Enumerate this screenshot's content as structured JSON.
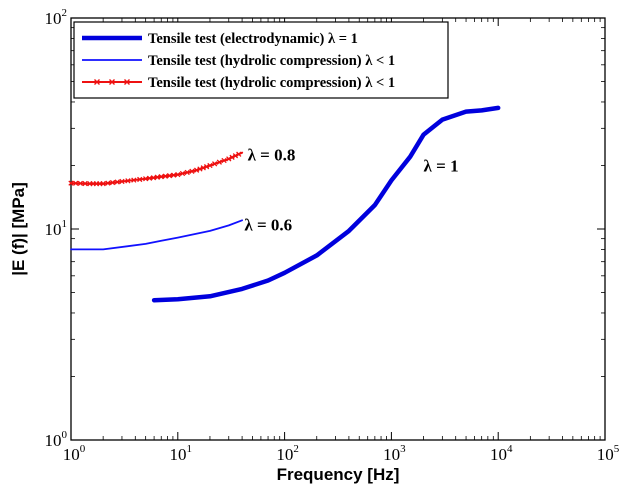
{
  "chart_data": {
    "type": "line",
    "xscale": "log",
    "yscale": "log",
    "xlim": [
      1,
      100000
    ],
    "ylim": [
      1,
      100
    ],
    "xlabel": "Frequency [Hz]",
    "ylabel": "|E (f)| [MPa]",
    "grid": false,
    "legend_position": "top-left",
    "x_ticks": [
      {
        "base": "10",
        "exp": "0",
        "value": 1
      },
      {
        "base": "10",
        "exp": "1",
        "value": 10
      },
      {
        "base": "10",
        "exp": "2",
        "value": 100
      },
      {
        "base": "10",
        "exp": "3",
        "value": 1000
      },
      {
        "base": "10",
        "exp": "4",
        "value": 10000
      },
      {
        "base": "10",
        "exp": "5",
        "value": 100000
      }
    ],
    "y_ticks": [
      {
        "base": "10",
        "exp": "0",
        "value": 1
      },
      {
        "base": "10",
        "exp": "1",
        "value": 10
      },
      {
        "base": "10",
        "exp": "2",
        "value": 100
      }
    ],
    "series": [
      {
        "name": "Tensile test (electrodynamic) λ = 1",
        "color": "#0000dd",
        "style": "thick",
        "x": [
          6,
          10,
          20,
          40,
          70,
          100,
          200,
          400,
          700,
          1000,
          1500,
          2000,
          3000,
          5000,
          7000,
          10000
        ],
        "y": [
          4.6,
          4.65,
          4.8,
          5.2,
          5.7,
          6.2,
          7.5,
          9.8,
          13,
          17,
          22,
          28,
          33,
          36,
          36.5,
          37.5
        ]
      },
      {
        "name": "Tensile test (hydrolic compression) λ < 1",
        "color": "#1111ff",
        "style": "thin",
        "x": [
          1,
          2,
          5,
          7,
          10,
          20,
          30,
          40
        ],
        "y": [
          8.0,
          8.0,
          8.5,
          8.8,
          9.1,
          9.8,
          10.4,
          11.0
        ]
      },
      {
        "name": "Tensile test (hydrolic compression) λ < 1",
        "color": "#ee1111",
        "style": "marker",
        "x": [
          1,
          1.5,
          2,
          3,
          5,
          7,
          10,
          15,
          20,
          30,
          40
        ],
        "y": [
          16.5,
          16.4,
          16.4,
          16.8,
          17.3,
          17.7,
          18.1,
          19.0,
          20.0,
          21.5,
          23.0
        ]
      }
    ],
    "annotations": [
      {
        "text": "λ = 0.8",
        "x": 45,
        "y": 22.5
      },
      {
        "text": "λ = 0.6",
        "x": 42,
        "y": 10.5
      },
      {
        "text": "λ = 1",
        "x": 2000,
        "y": 20
      }
    ]
  }
}
